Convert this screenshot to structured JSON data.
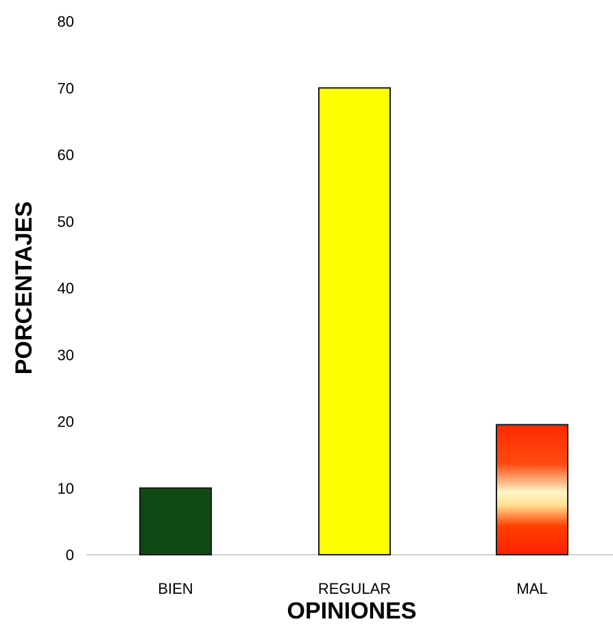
{
  "chart_data": {
    "type": "bar",
    "categories": [
      "BIEN",
      "REGULAR",
      "MAL"
    ],
    "values": [
      10,
      70,
      19.5
    ],
    "bar_colors": [
      "#0f4a14",
      "#ffff00",
      "gradient-red-cream-red"
    ],
    "xlabel": "OPINIONES",
    "ylabel": "PORCENTAJES",
    "ylim": [
      0,
      80
    ],
    "yticks": [
      "0",
      "10",
      "20",
      "30",
      "40",
      "50",
      "60",
      "70",
      "80"
    ],
    "grid": false,
    "legend": "none"
  }
}
